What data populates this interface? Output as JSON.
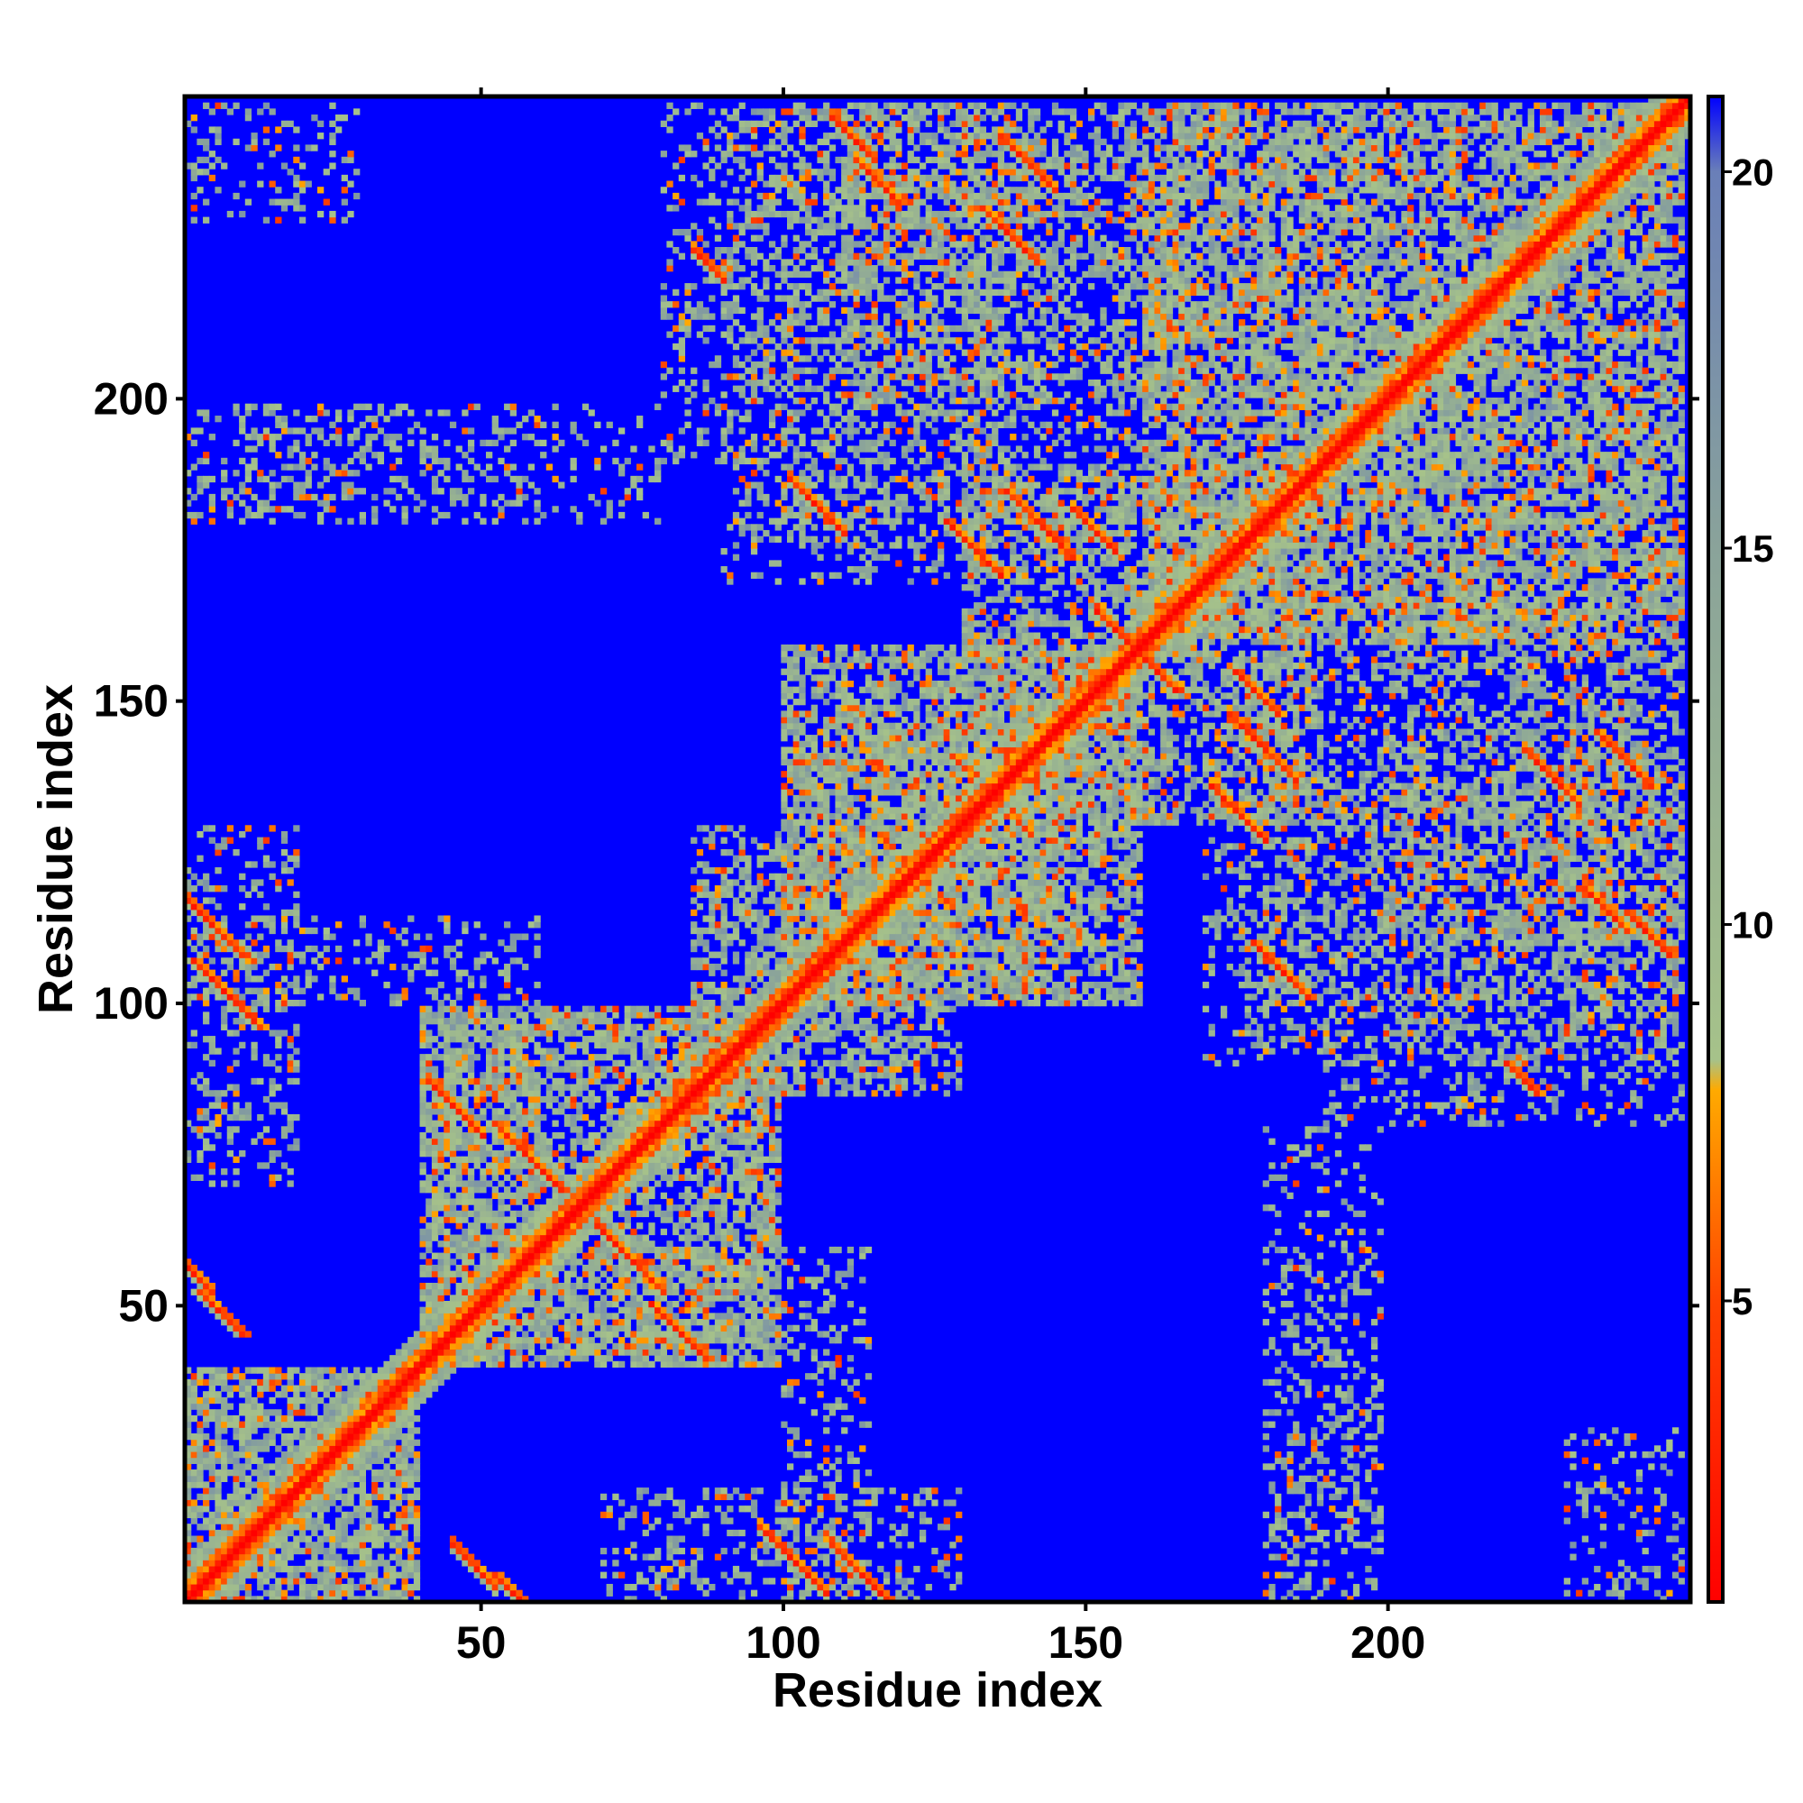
{
  "chart_data": {
    "type": "heatmap",
    "title": "",
    "xlabel": "Residue index",
    "ylabel": "Residue index",
    "n_residues": 250,
    "xlim": [
      1,
      250
    ],
    "ylim": [
      1,
      250
    ],
    "x_ticks": [
      50,
      100,
      150,
      200
    ],
    "y_ticks": [
      50,
      100,
      150,
      200
    ],
    "colorbar": {
      "ticks": [
        5,
        10,
        15,
        20
      ],
      "range": [
        1,
        21
      ],
      "scale": [
        {
          "value": 1,
          "color": "#ff0000"
        },
        {
          "value": 5,
          "color": "#ff4400"
        },
        {
          "value": 8,
          "color": "#ffaa00"
        },
        {
          "value": 9,
          "color": "#a6c28a"
        },
        {
          "value": 15,
          "color": "#8aa39a"
        },
        {
          "value": 20,
          "color": "#6a7fb8"
        },
        {
          "value": 21,
          "color": "#0000ff"
        }
      ]
    },
    "background_value": 21,
    "diagonal_value": 1,
    "contact_bands": [
      {
        "i": [
          1,
          40
        ],
        "j": [
          1,
          40
        ],
        "strength": 0.9
      },
      {
        "i": [
          40,
          100
        ],
        "j": [
          40,
          100
        ],
        "strength": 0.8
      },
      {
        "i": [
          100,
          160
        ],
        "j": [
          100,
          160
        ],
        "strength": 0.7
      },
      {
        "i": [
          160,
          250
        ],
        "j": [
          160,
          250
        ],
        "strength": 0.75
      },
      {
        "i": [
          1,
          60
        ],
        "j": [
          100,
          115
        ],
        "strength": 0.5
      },
      {
        "i": [
          70,
          130
        ],
        "j": [
          1,
          20
        ],
        "strength": 0.45
      },
      {
        "i": [
          60,
          95
        ],
        "j": [
          40,
          60
        ],
        "strength": 0.55
      },
      {
        "i": [
          85,
          120
        ],
        "j": [
          85,
          130
        ],
        "strength": 0.6
      },
      {
        "i": [
          90,
          140
        ],
        "j": [
          170,
          250
        ],
        "strength": 0.5
      },
      {
        "i": [
          110,
          200
        ],
        "j": [
          200,
          250
        ],
        "strength": 0.45
      },
      {
        "i": [
          130,
          190
        ],
        "j": [
          130,
          190
        ],
        "strength": 0.55
      },
      {
        "i": [
          180,
          240
        ],
        "j": [
          100,
          170
        ],
        "strength": 0.5
      },
      {
        "i": [
          190,
          250
        ],
        "j": [
          80,
          100
        ],
        "strength": 0.4
      },
      {
        "i": [
          230,
          250
        ],
        "j": [
          100,
          160
        ],
        "strength": 0.45
      },
      {
        "i": [
          1,
          60
        ],
        "j": [
          180,
          200
        ],
        "strength": 0.35
      },
      {
        "i": [
          1,
          30
        ],
        "j": [
          230,
          250
        ],
        "strength": 0.35
      },
      {
        "i": [
          180,
          200
        ],
        "j": [
          1,
          80
        ],
        "strength": 0.3
      },
      {
        "i": [
          110,
          150
        ],
        "j": [
          100,
          150
        ],
        "strength": 0.45
      }
    ],
    "antiparallel_strands": [
      {
        "i0": 2,
        "j0": 107,
        "len": 12
      },
      {
        "i0": 3,
        "j0": 52,
        "len": 8
      },
      {
        "i0": 52,
        "j0": 5,
        "len": 10
      },
      {
        "i0": 52,
        "j0": 80,
        "len": 12
      },
      {
        "i0": 78,
        "j0": 50,
        "len": 10
      },
      {
        "i0": 108,
        "j0": 10,
        "len": 10
      },
      {
        "i0": 112,
        "j0": 240,
        "len": 8
      },
      {
        "i0": 127,
        "j0": 180,
        "len": 10
      },
      {
        "i0": 133,
        "j0": 232,
        "len": 10
      },
      {
        "i0": 137,
        "j0": 185,
        "len": 12
      },
      {
        "i0": 152,
        "j0": 165,
        "len": 10
      },
      {
        "i0": 175,
        "j0": 155,
        "len": 8
      },
      {
        "i0": 178,
        "j0": 110,
        "len": 10
      },
      {
        "i0": 235,
        "j0": 145,
        "len": 10
      },
      {
        "i0": 240,
        "j0": 115,
        "len": 8
      },
      {
        "i0": 220,
        "j0": 90,
        "len": 6
      }
    ]
  }
}
